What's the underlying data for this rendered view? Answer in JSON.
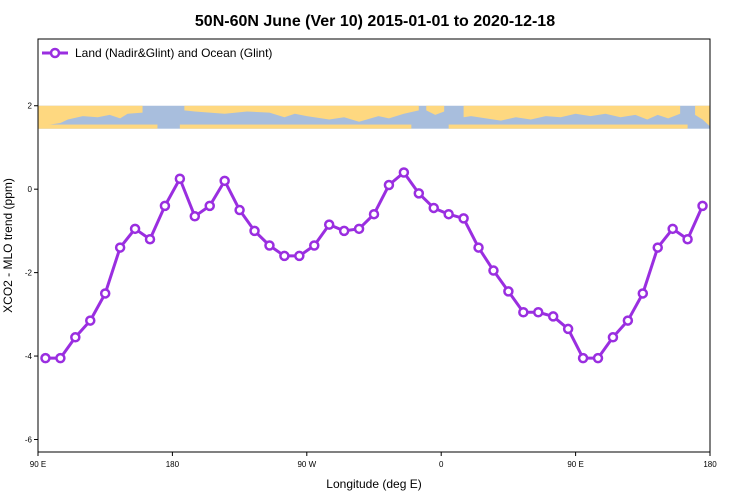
{
  "chart_data": {
    "type": "line",
    "title": "50N-60N June (Ver 10)   2015-01-01 to 2020-12-18",
    "xlabel": "Longitude (deg E)",
    "ylabel": "XCO2 - MLO trend (ppm)",
    "xlim": [
      90,
      540
    ],
    "ylim": [
      -6.3,
      3.6
    ],
    "x_ticks": [
      {
        "value": 90,
        "label": "90 E"
      },
      {
        "value": 180,
        "label": "180"
      },
      {
        "value": 270,
        "label": "90 W"
      },
      {
        "value": 360,
        "label": "0"
      },
      {
        "value": 450,
        "label": "90 E"
      },
      {
        "value": 540,
        "label": "180"
      }
    ],
    "y_ticks": [
      -6,
      -4,
      -2,
      0,
      2
    ],
    "legend": {
      "position": "top-left"
    },
    "map_band": {
      "y_range": [
        1.45,
        2.0
      ],
      "ocean_color": "#a8bedd",
      "land_color": "#fed880"
    },
    "series": [
      {
        "name": "Land (Nadir&Glint) and Ocean (Glint)",
        "color": "#9a2ee0",
        "x": [
          95,
          105,
          115,
          125,
          135,
          145,
          155,
          165,
          175,
          185,
          195,
          205,
          215,
          225,
          235,
          245,
          255,
          265,
          275,
          285,
          295,
          305,
          315,
          325,
          335,
          345,
          355,
          365,
          375,
          385,
          395,
          405,
          415,
          425,
          435,
          445,
          455,
          465,
          475,
          485,
          495,
          505,
          515,
          525,
          535
        ],
        "y": [
          -4.05,
          -4.05,
          -3.55,
          -3.15,
          -2.5,
          -1.4,
          -0.95,
          -1.2,
          -0.4,
          0.25,
          -0.65,
          -0.4,
          0.2,
          -0.5,
          -1.0,
          -1.35,
          -1.6,
          -1.6,
          -1.35,
          -0.85,
          -1.0,
          -0.95,
          -0.6,
          0.1,
          0.4,
          -0.1,
          -0.45,
          -0.6,
          -0.7,
          -1.4,
          -1.95,
          -2.45,
          -2.95,
          -2.95,
          -3.05,
          -3.35,
          -4.05,
          -4.05,
          -3.55,
          -3.15,
          -2.5,
          -1.4,
          -0.95,
          -1.2,
          -0.4
        ]
      }
    ]
  }
}
